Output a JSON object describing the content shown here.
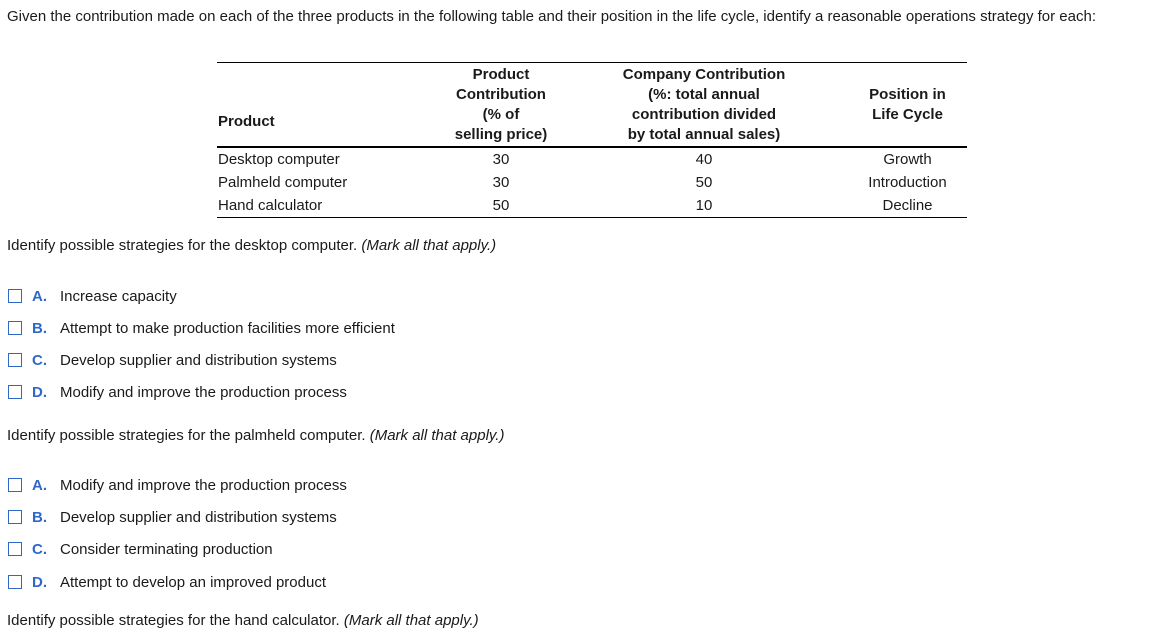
{
  "intro": "Given the contribution made on each of the three products in the following table and their position in the life cycle, identify a reasonable operations strategy for each:",
  "table": {
    "headers": {
      "product": "Product",
      "product_contribution": [
        "Product",
        "Contribution",
        "(% of",
        "selling price)"
      ],
      "company_contribution": [
        "Company Contribution",
        "(%: total annual",
        "contribution divided",
        "by total annual sales)"
      ],
      "position": [
        "Position in",
        "Life Cycle"
      ]
    },
    "rows": [
      {
        "product": "Desktop computer",
        "product_contribution": "30",
        "company_contribution": "40",
        "position": "Growth"
      },
      {
        "product": "Palmheld computer",
        "product_contribution": "30",
        "company_contribution": "50",
        "position": "Introduction"
      },
      {
        "product": "Hand calculator",
        "product_contribution": "50",
        "company_contribution": "10",
        "position": "Decline"
      }
    ]
  },
  "q1": {
    "prompt": "Identify possible strategies for the desktop computer.",
    "hint": "(Mark all that apply.)",
    "options": [
      {
        "letter": "A.",
        "text": "Increase capacity"
      },
      {
        "letter": "B.",
        "text": "Attempt to make production facilities more efficient"
      },
      {
        "letter": "C.",
        "text": "Develop supplier and distribution systems"
      },
      {
        "letter": "D.",
        "text": "Modify and improve the production process"
      }
    ]
  },
  "q2": {
    "prompt": "Identify possible strategies for the palmheld computer.",
    "hint": "(Mark all that apply.)",
    "options": [
      {
        "letter": "A.",
        "text": "Modify and improve the production process"
      },
      {
        "letter": "B.",
        "text": "Develop supplier and distribution systems"
      },
      {
        "letter": "C.",
        "text": "Consider terminating production"
      },
      {
        "letter": "D.",
        "text": "Attempt to develop an improved product"
      }
    ]
  },
  "q3": {
    "prompt": "Identify possible strategies for the hand calculator.",
    "hint": "(Mark all that apply.)"
  },
  "colors": {
    "accent": "#2f68c8",
    "text": "#1a1a1a"
  }
}
